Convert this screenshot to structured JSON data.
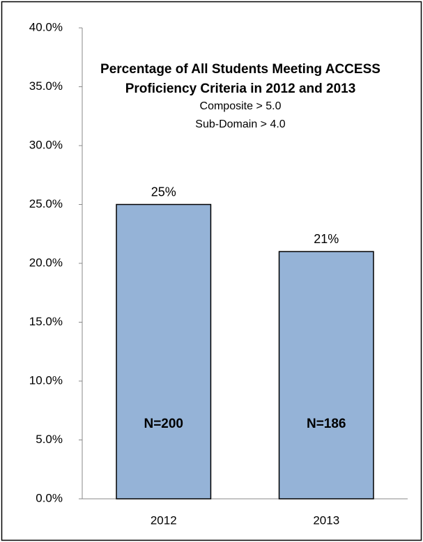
{
  "chart_data": {
    "type": "bar",
    "title": "Percentage of All Students Meeting ACCESS Proficiency Criteria in 2012 and 2013",
    "subtitle": [
      "Composite > 5.0",
      "Sub-Domain > 4.0"
    ],
    "categories": [
      "2012",
      "2013"
    ],
    "values": [
      25,
      21
    ],
    "value_labels": [
      "25%",
      "21%"
    ],
    "annotations": [
      "N=200",
      "N=186"
    ],
    "color": "#95b3d7",
    "ylim": [
      0,
      40
    ],
    "yticks": [
      {
        "value": 0,
        "label": "0.0%"
      },
      {
        "value": 5,
        "label": "5.0%"
      },
      {
        "value": 10,
        "label": "10.0%"
      },
      {
        "value": 15,
        "label": "15.0%"
      },
      {
        "value": 20,
        "label": "20.0%"
      },
      {
        "value": 25,
        "label": "25.0%"
      },
      {
        "value": 30,
        "label": "30.0%"
      },
      {
        "value": 35,
        "label": "35.0%"
      },
      {
        "value": 40,
        "label": "40.0%"
      }
    ],
    "grid": false
  }
}
